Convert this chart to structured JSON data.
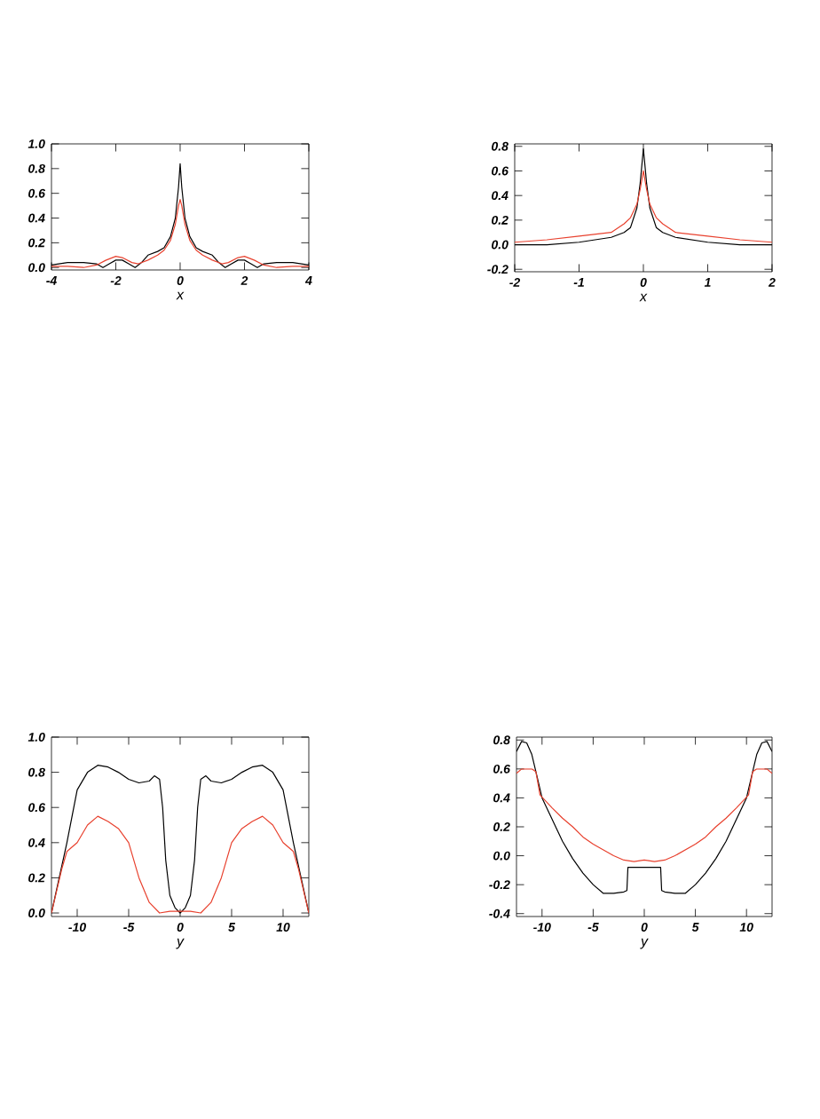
{
  "chart_data": [
    {
      "type": "line",
      "xlabel": "x",
      "xlim": [
        -4,
        4
      ],
      "ylim": [
        -0.02,
        1.0
      ],
      "xticks": [
        -4,
        -2,
        0,
        2,
        4
      ],
      "yticks": [
        {
          "value": 0,
          "label": "0.0"
        },
        {
          "value": 0.2,
          "label": "0.2"
        },
        {
          "value": 0.4,
          "label": "0.4"
        },
        {
          "value": 0.6,
          "label": "0.6"
        },
        {
          "value": 0.8,
          "label": "0.8"
        },
        {
          "value": 1.0,
          "label": "1.0"
        }
      ],
      "series": [
        {
          "color": "#000000",
          "x": [
            -4,
            -3.5,
            -3,
            -2.6,
            -2.4,
            -2.2,
            -2,
            -1.8,
            -1.6,
            -1.4,
            -1.2,
            -1,
            -0.7,
            -0.5,
            -0.3,
            -0.15,
            -0.05,
            0,
            0.05,
            0.15,
            0.3,
            0.5,
            0.7,
            1,
            1.2,
            1.4,
            1.6,
            1.8,
            2,
            2.2,
            2.4,
            2.6,
            3,
            3.5,
            4
          ],
          "values": [
            0.02,
            0.04,
            0.04,
            0.03,
            0.0,
            0.03,
            0.06,
            0.06,
            0.03,
            0.0,
            0.04,
            0.1,
            0.13,
            0.16,
            0.25,
            0.4,
            0.65,
            0.84,
            0.65,
            0.4,
            0.25,
            0.16,
            0.13,
            0.1,
            0.04,
            0.0,
            0.03,
            0.06,
            0.06,
            0.03,
            0.0,
            0.03,
            0.04,
            0.04,
            0.02
          ]
        },
        {
          "color": "#e8412e",
          "x": [
            -4,
            -3.5,
            -3,
            -2.6,
            -2.3,
            -2,
            -1.8,
            -1.5,
            -1.3,
            -1,
            -0.7,
            -0.5,
            -0.3,
            -0.15,
            -0.05,
            0,
            0.05,
            0.15,
            0.3,
            0.5,
            0.7,
            1,
            1.3,
            1.5,
            1.8,
            2,
            2.3,
            2.6,
            3,
            3.5,
            4
          ],
          "values": [
            0.01,
            0.01,
            0.0,
            0.02,
            0.06,
            0.09,
            0.08,
            0.04,
            0.03,
            0.06,
            0.1,
            0.14,
            0.22,
            0.35,
            0.5,
            0.55,
            0.5,
            0.35,
            0.22,
            0.14,
            0.1,
            0.06,
            0.03,
            0.04,
            0.08,
            0.09,
            0.06,
            0.02,
            0.0,
            0.01,
            0.01
          ]
        }
      ]
    },
    {
      "type": "line",
      "xlabel": "x",
      "xlim": [
        -2,
        2
      ],
      "ylim": [
        -0.22,
        0.82
      ],
      "xticks": [
        -2,
        -1,
        0,
        1,
        2
      ],
      "yticks": [
        {
          "value": -0.2,
          "label": "-0.2"
        },
        {
          "value": 0,
          "label": "0.0"
        },
        {
          "value": 0.2,
          "label": "0.2"
        },
        {
          "value": 0.4,
          "label": "0.4"
        },
        {
          "value": 0.6,
          "label": "0.6"
        },
        {
          "value": 0.8,
          "label": "0.8"
        }
      ],
      "series": [
        {
          "color": "#000000",
          "x": [
            -2,
            -1.5,
            -1,
            -0.5,
            -0.3,
            -0.2,
            -0.1,
            -0.05,
            0,
            0.05,
            0.1,
            0.2,
            0.3,
            0.5,
            1,
            1.5,
            2
          ],
          "values": [
            0.0,
            0.0,
            0.02,
            0.06,
            0.1,
            0.14,
            0.3,
            0.5,
            0.78,
            0.5,
            0.3,
            0.14,
            0.1,
            0.06,
            0.02,
            0.0,
            0.0
          ]
        },
        {
          "color": "#e8412e",
          "x": [
            -2,
            -1.5,
            -1,
            -0.5,
            -0.3,
            -0.2,
            -0.1,
            -0.05,
            0,
            0.05,
            0.1,
            0.2,
            0.3,
            0.5,
            1,
            1.5,
            2
          ],
          "values": [
            0.02,
            0.04,
            0.07,
            0.1,
            0.17,
            0.22,
            0.33,
            0.45,
            0.6,
            0.45,
            0.33,
            0.22,
            0.17,
            0.1,
            0.07,
            0.04,
            0.02
          ]
        }
      ]
    },
    {
      "type": "line",
      "xlabel": "y",
      "xlim": [
        -12.5,
        12.5
      ],
      "ylim": [
        -0.02,
        1.0
      ],
      "xticks": [
        -10,
        -5,
        0,
        5,
        10
      ],
      "yticks": [
        {
          "value": 0,
          "label": "0.0"
        },
        {
          "value": 0.2,
          "label": "0.2"
        },
        {
          "value": 0.4,
          "label": "0.4"
        },
        {
          "value": 0.6,
          "label": "0.6"
        },
        {
          "value": 0.8,
          "label": "0.8"
        },
        {
          "value": 1.0,
          "label": "1.0"
        }
      ],
      "series": [
        {
          "color": "#000000",
          "x": [
            -12.5,
            -11,
            -10,
            -9,
            -8,
            -7,
            -6,
            -5,
            -4,
            -3,
            -2.5,
            -2,
            -1.7,
            -1.4,
            -1,
            -0.5,
            0,
            0.5,
            1,
            1.4,
            1.7,
            2,
            2.5,
            3,
            4,
            5,
            6,
            7,
            8,
            9,
            10,
            11,
            12.5
          ],
          "values": [
            0.0,
            0.4,
            0.7,
            0.8,
            0.84,
            0.83,
            0.8,
            0.76,
            0.74,
            0.75,
            0.78,
            0.76,
            0.6,
            0.3,
            0.1,
            0.03,
            0.0,
            0.03,
            0.1,
            0.3,
            0.6,
            0.76,
            0.78,
            0.75,
            0.74,
            0.76,
            0.8,
            0.83,
            0.84,
            0.8,
            0.7,
            0.4,
            0.0
          ]
        },
        {
          "color": "#e8412e",
          "x": [
            -12.5,
            -11.5,
            -11,
            -10,
            -9,
            -8,
            -7,
            -6,
            -5,
            -4,
            -3,
            -2,
            -1,
            0,
            1,
            2,
            3,
            4,
            5,
            6,
            7,
            8,
            9,
            10,
            11,
            11.5,
            12.5
          ],
          "values": [
            0.0,
            0.25,
            0.35,
            0.4,
            0.5,
            0.55,
            0.52,
            0.48,
            0.4,
            0.2,
            0.06,
            0.0,
            0.01,
            0.01,
            0.01,
            0.0,
            0.06,
            0.2,
            0.4,
            0.48,
            0.52,
            0.55,
            0.5,
            0.4,
            0.35,
            0.25,
            0.0
          ]
        }
      ]
    },
    {
      "type": "line",
      "xlabel": "y",
      "xlim": [
        -12.5,
        12.5
      ],
      "ylim": [
        -0.42,
        0.82
      ],
      "xticks": [
        -10,
        -5,
        0,
        5,
        10
      ],
      "yticks": [
        {
          "value": -0.4,
          "label": "-0.4"
        },
        {
          "value": -0.2,
          "label": "-0.2"
        },
        {
          "value": 0,
          "label": "0.0"
        },
        {
          "value": 0.2,
          "label": "0.2"
        },
        {
          "value": 0.4,
          "label": "0.4"
        },
        {
          "value": 0.6,
          "label": "0.6"
        },
        {
          "value": 0.8,
          "label": "0.8"
        }
      ],
      "series": [
        {
          "color": "#000000",
          "x": [
            -12.5,
            -12,
            -11.5,
            -11,
            -10.5,
            -10,
            -9,
            -8,
            -7,
            -6,
            -5,
            -4,
            -3,
            -2,
            -1.7,
            -1.6,
            1.6,
            1.7,
            2,
            3,
            4,
            5,
            6,
            7,
            8,
            9,
            10,
            10.5,
            11,
            11.5,
            12,
            12.5
          ],
          "values": [
            0.72,
            0.79,
            0.78,
            0.7,
            0.55,
            0.4,
            0.25,
            0.1,
            -0.02,
            -0.12,
            -0.2,
            -0.26,
            -0.26,
            -0.25,
            -0.24,
            -0.08,
            -0.08,
            -0.24,
            -0.25,
            -0.26,
            -0.26,
            -0.2,
            -0.12,
            -0.02,
            0.1,
            0.25,
            0.4,
            0.55,
            0.7,
            0.78,
            0.79,
            0.72
          ]
        },
        {
          "color": "#e8412e",
          "x": [
            -12.5,
            -12,
            -11,
            -10.6,
            -10.2,
            -9,
            -8,
            -7,
            -6,
            -5,
            -4,
            -3,
            -2,
            -1,
            0,
            1,
            2,
            3,
            4,
            5,
            6,
            7,
            8,
            9,
            10.2,
            10.6,
            11,
            12,
            12.5
          ],
          "values": [
            0.57,
            0.6,
            0.6,
            0.58,
            0.42,
            0.33,
            0.26,
            0.2,
            0.13,
            0.08,
            0.04,
            0.0,
            -0.03,
            -0.04,
            -0.03,
            -0.04,
            -0.03,
            0.0,
            0.04,
            0.08,
            0.13,
            0.2,
            0.26,
            0.33,
            0.42,
            0.58,
            0.6,
            0.6,
            0.57
          ]
        }
      ]
    }
  ]
}
